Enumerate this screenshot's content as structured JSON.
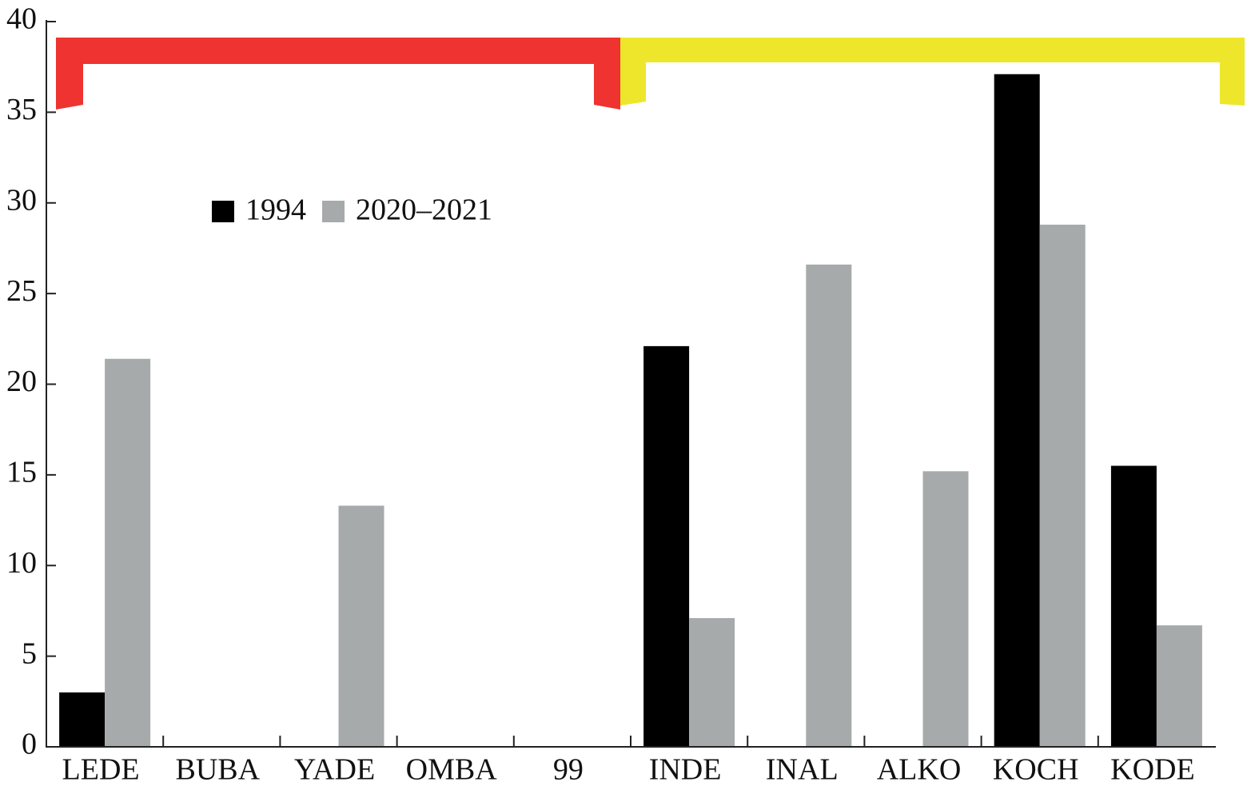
{
  "chart_data": {
    "type": "bar",
    "categories": [
      "LEDE",
      "BUBA",
      "YADE",
      "OMBA",
      "99",
      "INDE",
      "INAL",
      "ALKO",
      "KOCH",
      "KODE"
    ],
    "series": [
      {
        "name": "1994",
        "color": "#000000",
        "values": [
          3,
          0,
          0,
          0,
          0,
          22.1,
          0,
          0,
          37.1,
          15.5
        ]
      },
      {
        "name": "2020–2021",
        "color": "#a7aaab",
        "values": [
          21.4,
          0,
          13.3,
          0,
          0,
          7.1,
          26.6,
          15.2,
          28.8,
          6.7
        ]
      }
    ],
    "ylim": [
      0,
      40
    ],
    "yticks": [
      0,
      5,
      10,
      15,
      20,
      25,
      30,
      35,
      40
    ]
  }
}
